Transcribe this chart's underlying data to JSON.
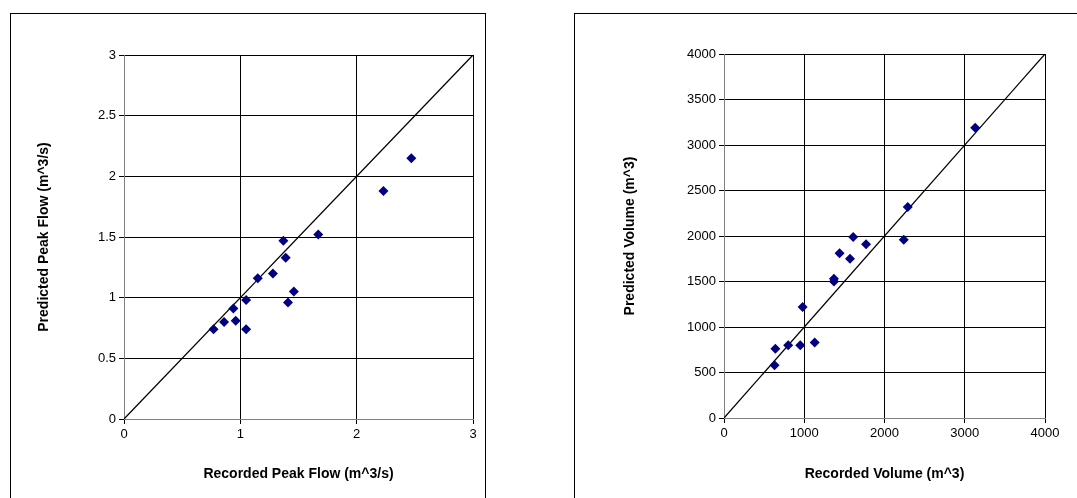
{
  "chart_data": [
    {
      "type": "scatter",
      "xlabel": "Recorded Peak Flow (m^3/s)",
      "ylabel": "Predicted Peak Flow (m^3/s)",
      "xlim": [
        0,
        3
      ],
      "ylim": [
        0,
        3
      ],
      "xticks": [
        0,
        1,
        2,
        3
      ],
      "yticks": [
        0,
        0.5,
        1,
        1.5,
        2,
        2.5,
        3
      ],
      "grid": true,
      "series": [
        {
          "color": "#000080",
          "marker": "diamond",
          "x": [
            0.77,
            0.86,
            0.94,
            0.96,
            1.05,
            1.05,
            1.15,
            1.28,
            1.37,
            1.39,
            1.41,
            1.46,
            1.67,
            2.23,
            2.47
          ],
          "values": [
            0.74,
            0.8,
            0.91,
            0.81,
            0.98,
            0.74,
            1.16,
            1.2,
            1.47,
            1.33,
            0.96,
            1.05,
            1.52,
            1.88,
            2.15
          ]
        },
        {
          "type": "line",
          "color": "#000000",
          "marker": "none",
          "x": [
            0,
            3
          ],
          "values": [
            0,
            3
          ]
        }
      ]
    },
    {
      "type": "scatter",
      "xlabel": "Recorded Volume (m^3)",
      "ylabel": "Predicted Volume (m^3)",
      "xlim": [
        0,
        4000
      ],
      "ylim": [
        0,
        4000
      ],
      "xticks": [
        0,
        1000,
        2000,
        3000,
        4000
      ],
      "yticks": [
        0,
        500,
        1000,
        1500,
        2000,
        2500,
        3000,
        3500,
        4000
      ],
      "grid": true,
      "series": [
        {
          "color": "#000080",
          "marker": "diamond",
          "x": [
            630,
            640,
            800,
            950,
            980,
            1130,
            1370,
            1370,
            1440,
            1570,
            1610,
            1770,
            2240,
            2290,
            3130
          ],
          "values": [
            580,
            760,
            800,
            800,
            1220,
            830,
            1500,
            1530,
            1810,
            1750,
            1990,
            1910,
            1960,
            2320,
            3190
          ]
        },
        {
          "type": "line",
          "color": "#000000",
          "marker": "none",
          "x": [
            0,
            4000
          ],
          "values": [
            0,
            4000
          ]
        }
      ]
    }
  ]
}
